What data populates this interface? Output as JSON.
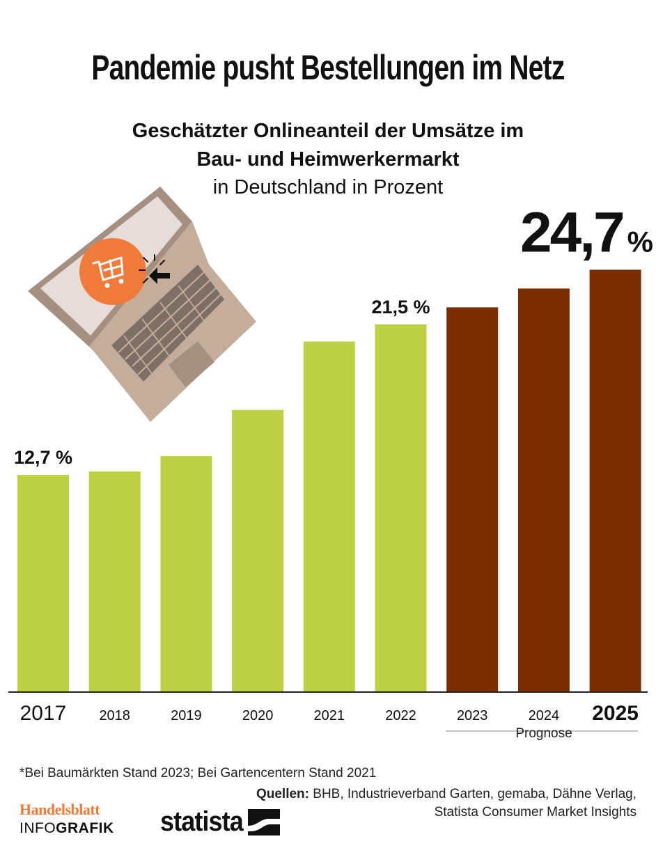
{
  "title": "Pandemie pusht Bestellungen im Netz",
  "subtitle_line1": "Geschätzter Onlineanteil der Umsätze im",
  "subtitle_line2": "Bau- und Heimwerkermarkt",
  "subtitle_line3": "in Deutschland in Prozent",
  "footnote": "*Bei Baumärkten Stand 2023; Bei Gartencentern Stand 2021",
  "sources_label": "Quellen:",
  "sources_text1": " BHB, Industrieverband Garten, gemaba, Dähne Verlag,",
  "sources_text2": "Statista Consumer Market Insights",
  "brand_name": "Handelsblatt",
  "brand_info_light": "INFO",
  "brand_info_bold": "GRAFIK",
  "statista_logo": "statista",
  "colors": {
    "actual": "#bdd143",
    "forecast": "#7a2e02",
    "laptop_body": "#c4ad9a",
    "laptop_frame": "#a48f80",
    "cart_circle": "#f07a3a"
  },
  "chart_data": {
    "type": "bar",
    "title": "Geschätzter Onlineanteil der Umsätze im Bau- und Heimwerkermarkt in Deutschland in Prozent",
    "categories": [
      "2017",
      "2018",
      "2019",
      "2020",
      "2021",
      "2022",
      "2023",
      "2024",
      "2025"
    ],
    "values": [
      12.7,
      12.9,
      13.8,
      16.5,
      20.5,
      21.5,
      22.5,
      23.6,
      24.7
    ],
    "forecast_from": "2023",
    "forecast_label": "Prognose",
    "ylim": [
      0,
      25
    ],
    "data_labels": [
      {
        "category": "2017",
        "text": "12,7 %"
      },
      {
        "category": "2022",
        "text": "21,5 %"
      },
      {
        "category": "2025",
        "text_value": "24,7",
        "text_unit": "%"
      }
    ],
    "xlabel": "",
    "ylabel": ""
  }
}
